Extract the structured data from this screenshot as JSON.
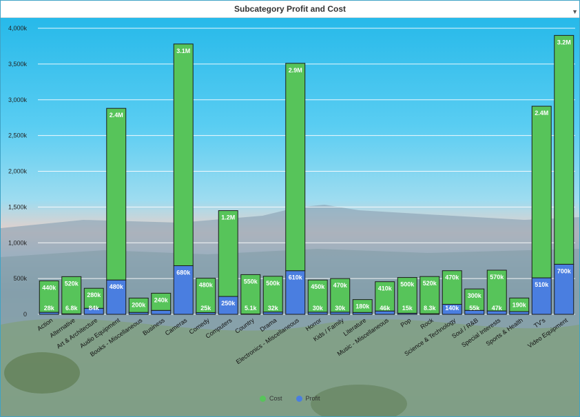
{
  "title": "Subcategory Profit and Cost",
  "chart_data": {
    "type": "bar",
    "stacked": true,
    "title": "Subcategory Profit and Cost",
    "xlabel": "",
    "ylabel": "",
    "ylim": [
      0,
      4000000
    ],
    "yticks": [
      0,
      500000,
      1000000,
      1500000,
      2000000,
      2500000,
      3000000,
      3500000,
      4000000
    ],
    "ytick_labels": [
      "0",
      "500k",
      "1,000k",
      "1,500k",
      "2,000k",
      "2,500k",
      "3,000k",
      "3,500k",
      "4,000k"
    ],
    "grid": true,
    "legend_position": "bottom",
    "categories": [
      "Action",
      "Alternative",
      "Art & Architecture",
      "Audio Equipment",
      "Books - Miscellaneous",
      "Business",
      "Cameras",
      "Comedy",
      "Computers",
      "Country",
      "Drama",
      "Electronics - Miscellaneous",
      "Horror",
      "Kids / Family",
      "Literature",
      "Music - Miscellaneous",
      "Pop",
      "Rock",
      "Science & Technology",
      "Soul / R&B",
      "Special Interests",
      "Sports & Health",
      "TV's",
      "Video Equipment"
    ],
    "series": [
      {
        "name": "Profit",
        "color": "#4a7ee0",
        "values": [
          28000,
          6800,
          84000,
          480000,
          27000,
          55000,
          680000,
          25000,
          250000,
          5100,
          32000,
          610000,
          30000,
          30000,
          26000,
          46000,
          15000,
          8300,
          140000,
          55000,
          47000,
          38000,
          510000,
          700000
        ],
        "labels": [
          "28k",
          "6.8k",
          "84k",
          "480k",
          "",
          "",
          "680k",
          "25k",
          "250k",
          "5.1k",
          "32k",
          "610k",
          "30k",
          "30k",
          "",
          "46k",
          "15k",
          "8.3k",
          "140k",
          "55k",
          "47k",
          "",
          "510k",
          "700k"
        ]
      },
      {
        "name": "Cost",
        "color": "#57c45a",
        "values": [
          440000,
          520000,
          280000,
          2400000,
          200000,
          240000,
          3100000,
          480000,
          1200000,
          550000,
          500000,
          2900000,
          450000,
          470000,
          180000,
          410000,
          500000,
          520000,
          470000,
          300000,
          570000,
          190000,
          2400000,
          3200000
        ],
        "labels": [
          "440k",
          "520k",
          "280k",
          "2.4M",
          "200k",
          "240k",
          "3.1M",
          "480k",
          "1.2M",
          "550k",
          "500k",
          "2.9M",
          "450k",
          "470k",
          "180k",
          "410k",
          "500k",
          "520k",
          "470k",
          "300k",
          "570k",
          "190k",
          "2.4M",
          "3.2M"
        ]
      }
    ]
  },
  "legend": [
    {
      "label": "Cost",
      "color": "#57c45a"
    },
    {
      "label": "Profit",
      "color": "#4a7ee0"
    }
  ],
  "menu_icon": "chevron-down-icon"
}
